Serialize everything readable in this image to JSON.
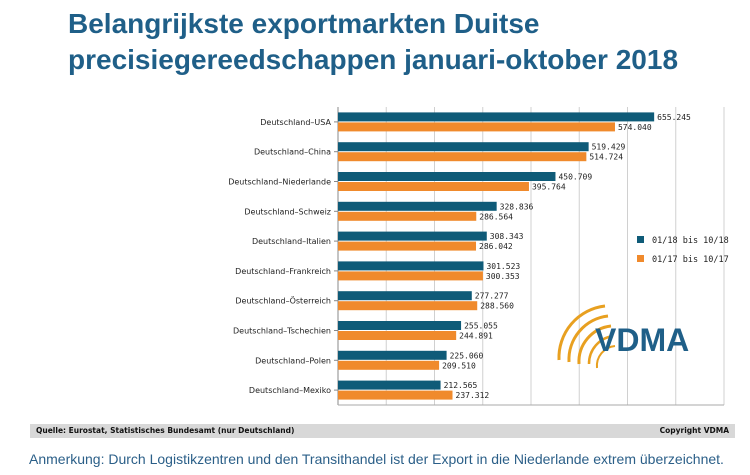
{
  "title": "Belangrijkste exportmarkten Duitse precisiegereedschappen januari-oktober 2018",
  "source": "Quelle: Eurostat, Statistisches Bundesamt (nur Deutschland)",
  "copyright": "Copyright VDMA",
  "note": "Anmerkung: Durch Logistikzentren und den Transithandel ist der Export in die Niederlande extrem überzeichnet.",
  "logo_text": "VDMA",
  "colors": {
    "series1": "#0f5b78",
    "series2": "#f08a2c",
    "title": "#1f5f88",
    "logo_arc": "#e8a020"
  },
  "chart_data": {
    "type": "bar",
    "orientation": "horizontal",
    "categories": [
      "Deutschland–USA",
      "Deutschland–China",
      "Deutschland–Niederlande",
      "Deutschland–Schweiz",
      "Deutschland–Italien",
      "Deutschland–Frankreich",
      "Deutschland–Österreich",
      "Deutschland–Tschechien",
      "Deutschland–Polen",
      "Deutschland–Mexiko"
    ],
    "series": [
      {
        "name": "01/18 bis 10/18",
        "values": [
          655.245,
          519.429,
          450.709,
          328.836,
          308.343,
          301.523,
          277.277,
          255.055,
          225.06,
          212.565
        ],
        "labels": [
          "655.245",
          "519.429",
          "450.709",
          "328.836",
          "308.343",
          "301.523",
          "277.277",
          "255.055",
          "225.060",
          "212.565"
        ]
      },
      {
        "name": "01/17 bis 10/17",
        "values": [
          574.04,
          514.724,
          395.764,
          286.564,
          286.042,
          300.353,
          288.56,
          244.891,
          209.51,
          237.312
        ],
        "labels": [
          "574.040",
          "514.724",
          "395.764",
          "286.564",
          "286.042",
          "300.353",
          "288.560",
          "244.891",
          "209.510",
          "237.312"
        ]
      }
    ],
    "xlim": [
      0,
      800
    ],
    "grid": true,
    "legend_position": "right"
  }
}
